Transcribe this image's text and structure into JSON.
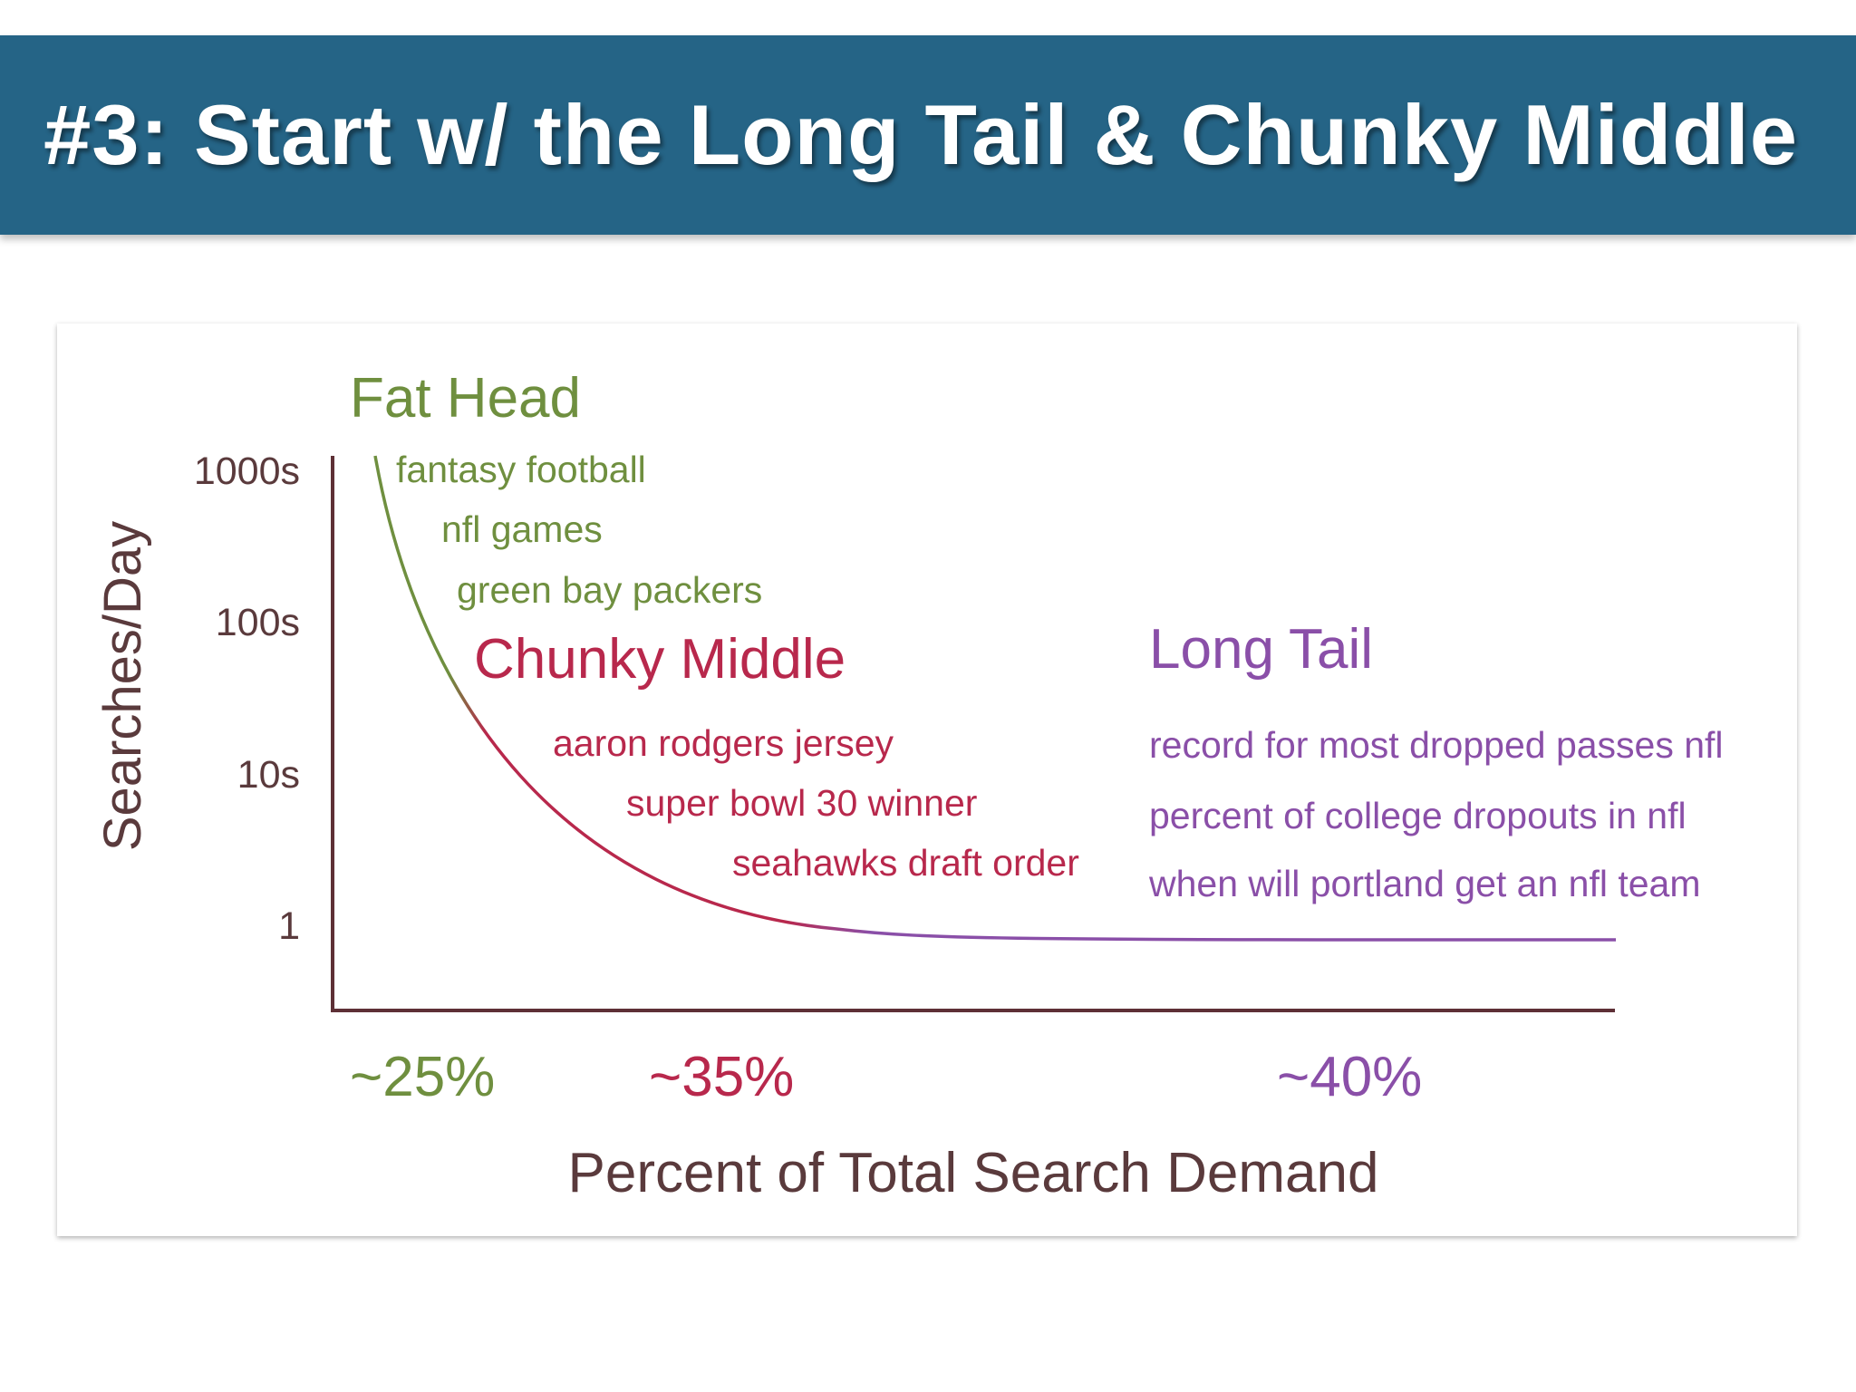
{
  "title": "#3: Start w/ the Long Tail & Chunky Middle",
  "colors": {
    "title_bar": "#256486",
    "head": "#6f8f3f",
    "middle": "#b8284c",
    "tail": "#8a4fa8",
    "axis": "#5e3036",
    "axis_text": "#5a3a3c"
  },
  "chart_data": {
    "type": "line",
    "xlabel": "Percent of Total Search Demand",
    "ylabel": "Searches/Day",
    "yscale": "log",
    "yticks": [
      "1000s",
      "100s",
      "10s",
      "1"
    ],
    "grid": false,
    "segments": [
      {
        "name": "Fat Head",
        "share": "~25%",
        "keywords": [
          "fantasy football",
          "nfl games",
          "green bay packers"
        ]
      },
      {
        "name": "Chunky Middle",
        "share": "~35%",
        "keywords": [
          "aaron rodgers jersey",
          "super bowl 30 winner",
          "seahawks draft order"
        ]
      },
      {
        "name": "Long Tail",
        "share": "~40%",
        "keywords": [
          "record for most dropped passes nfl",
          "percent of college dropouts in nfl",
          "when will portland get an nfl team"
        ]
      }
    ]
  }
}
